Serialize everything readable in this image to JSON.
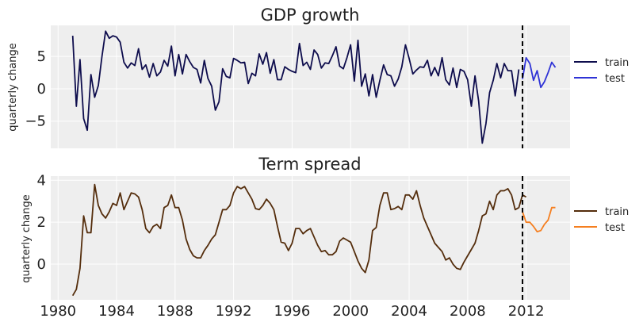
{
  "chart_data": [
    {
      "type": "line",
      "title": "GDP growth",
      "xlabel": "",
      "ylabel": "quarterly change",
      "xlim": [
        1979.5,
        2015.0
      ],
      "ylim": [
        -9.2,
        9.8
      ],
      "yticks": [
        -5,
        0,
        5
      ],
      "ytick_labels": [
        "−5",
        "0",
        "5"
      ],
      "xticks": [
        1980,
        1984,
        1988,
        1992,
        1996,
        2000,
        2004,
        2008,
        2012
      ],
      "xtick_labels": [],
      "split_line_x": 2011.75,
      "legend_position": "right",
      "grid": true,
      "series": [
        {
          "name": "train",
          "color": "#0e0d4d",
          "x_start": 1981.0,
          "step": 0.25,
          "values": [
            8.2,
            -2.7,
            4.5,
            -4.6,
            -6.4,
            2.2,
            -1.3,
            0.5,
            5.0,
            8.9,
            7.8,
            8.2,
            8.0,
            7.2,
            4.1,
            3.2,
            4.0,
            3.6,
            6.2,
            3.0,
            3.7,
            1.8,
            3.9,
            2.0,
            2.6,
            4.4,
            3.5,
            6.6,
            2.0,
            5.3,
            2.3,
            5.3,
            4.2,
            3.3,
            3.0,
            0.9,
            4.4,
            1.6,
            0.4,
            -3.3,
            -2.0,
            3.1,
            1.9,
            1.7,
            4.7,
            4.4,
            4.0,
            4.1,
            0.8,
            2.4,
            2.0,
            5.4,
            3.8,
            5.6,
            2.4,
            4.5,
            1.4,
            1.4,
            3.4,
            3.0,
            2.7,
            2.5,
            7.0,
            3.6,
            4.1,
            3.0,
            6.0,
            5.3,
            3.2,
            4.0,
            3.9,
            5.1,
            6.5,
            3.5,
            3.1,
            4.8,
            6.8,
            1.2,
            7.5,
            0.4,
            2.3,
            -1.1,
            2.2,
            -1.3,
            1.3,
            3.7,
            2.2,
            2.0,
            0.4,
            1.5,
            3.4,
            6.8,
            4.7,
            2.3,
            2.9,
            3.4,
            3.3,
            4.4,
            2.0,
            3.3,
            2.0,
            4.8,
            1.4,
            0.6,
            3.2,
            0.2,
            3.0,
            2.7,
            1.4,
            -2.7,
            2.0,
            -1.9,
            -8.4,
            -5.4,
            -0.6,
            1.3,
            3.9,
            1.7,
            3.9,
            2.8,
            2.8,
            -1.1,
            3.0
          ]
        },
        {
          "name": "test",
          "color": "#2f33d6",
          "x_start": 2011.75,
          "step": 0.25,
          "values": [
            1.5,
            4.8,
            3.9,
            1.3,
            2.8,
            0.2,
            1.1,
            2.5,
            4.1,
            3.3
          ]
        }
      ]
    },
    {
      "type": "line",
      "title": "Term spread",
      "xlabel": "",
      "ylabel": "quarterly change",
      "xlim": [
        1979.5,
        2015.0
      ],
      "ylim": [
        -1.7,
        4.2
      ],
      "yticks": [
        0,
        2,
        4
      ],
      "ytick_labels": [
        "0",
        "2",
        "4"
      ],
      "xticks": [
        1980,
        1984,
        1988,
        1992,
        1996,
        2000,
        2004,
        2008,
        2012
      ],
      "xtick_labels": [
        "1980",
        "1984",
        "1988",
        "1992",
        "1996",
        "2000",
        "2004",
        "2008",
        "2012"
      ],
      "split_line_x": 2011.75,
      "legend_position": "right",
      "grid": true,
      "series": [
        {
          "name": "train",
          "color": "#542d0c",
          "x_start": 1981.0,
          "step": 0.25,
          "values": [
            -1.5,
            -1.2,
            -0.2,
            2.3,
            1.5,
            1.5,
            3.8,
            2.8,
            2.4,
            2.2,
            2.5,
            2.9,
            2.8,
            3.4,
            2.6,
            3.0,
            3.4,
            3.35,
            3.2,
            2.6,
            1.7,
            1.5,
            1.8,
            1.9,
            1.7,
            2.7,
            2.8,
            3.3,
            2.7,
            2.7,
            2.1,
            1.2,
            0.7,
            0.4,
            0.3,
            0.3,
            0.65,
            0.9,
            1.2,
            1.4,
            2.0,
            2.6,
            2.6,
            2.8,
            3.4,
            3.7,
            3.6,
            3.7,
            3.4,
            3.1,
            2.65,
            2.6,
            2.8,
            3.1,
            2.9,
            2.6,
            1.8,
            1.05,
            1.0,
            0.65,
            1.0,
            1.7,
            1.7,
            1.45,
            1.6,
            1.7,
            1.3,
            0.9,
            0.6,
            0.65,
            0.45,
            0.45,
            0.6,
            1.1,
            1.25,
            1.15,
            1.05,
            0.6,
            0.15,
            -0.2,
            -0.4,
            0.2,
            1.6,
            1.75,
            2.8,
            3.4,
            3.4,
            2.6,
            2.65,
            2.75,
            2.6,
            3.3,
            3.3,
            3.1,
            3.5,
            2.8,
            2.2,
            1.8,
            1.4,
            1.0,
            0.8,
            0.6,
            0.2,
            0.3,
            0.0,
            -0.2,
            -0.25,
            0.1,
            0.4,
            0.7,
            1.0,
            1.6,
            2.3,
            2.4,
            3.0,
            2.6,
            3.3,
            3.5,
            3.5,
            3.6,
            3.3,
            2.6,
            2.7,
            3.3,
            3.2
          ]
        },
        {
          "name": "test",
          "color": "#f57f20",
          "x_start": 2011.75,
          "step": 0.25,
          "values": [
            2.5,
            2.0,
            2.0,
            1.8,
            1.55,
            1.6,
            1.9,
            2.1,
            2.7,
            2.7
          ]
        }
      ]
    }
  ]
}
